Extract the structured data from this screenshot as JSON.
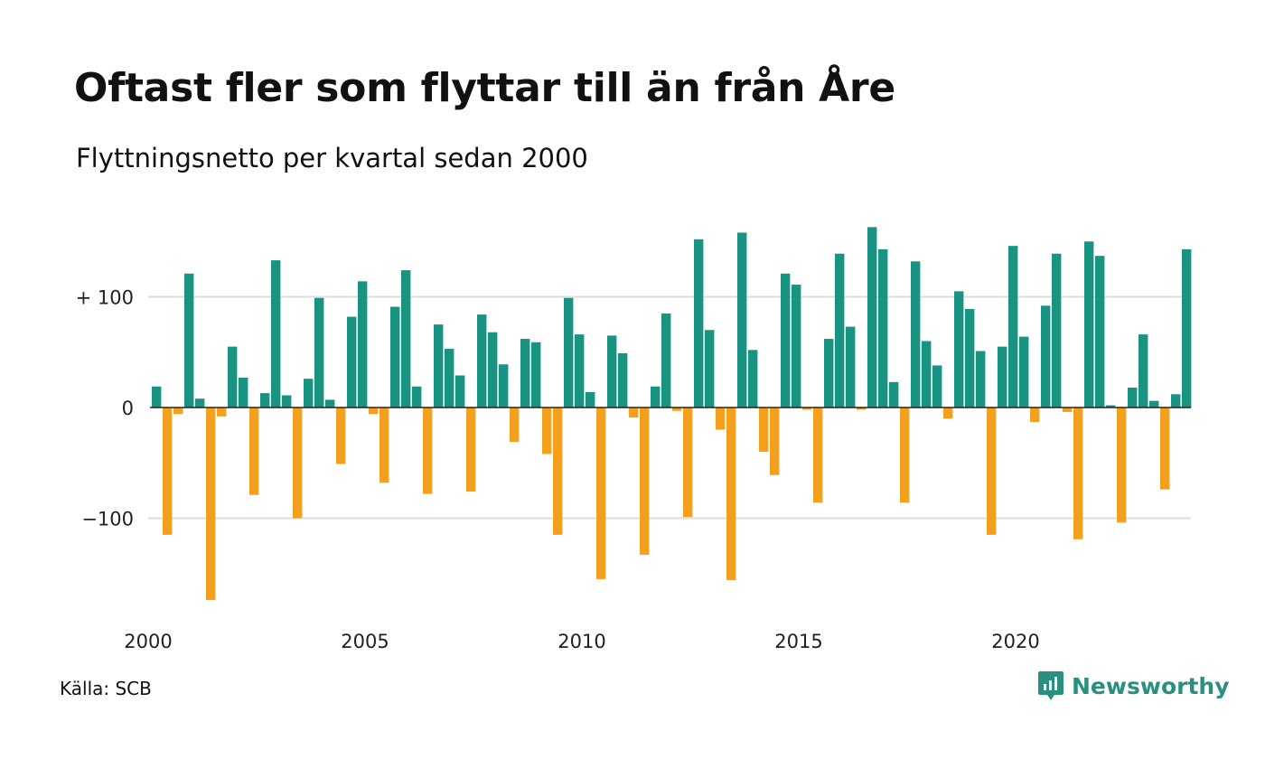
{
  "title": "Oftast fler som flyttar till än från Åre",
  "subtitle": "Flyttningsnetto per kvartal sedan 2000",
  "source": "Källa: SCB",
  "brand": {
    "name": "Newsworthy",
    "icon": "chart-speech-bubble-icon",
    "color": "#2b8f80"
  },
  "colors": {
    "positive": "#1a9482",
    "negative": "#f4a01c",
    "grid": "#dddddd",
    "axis": "#222222"
  },
  "chart_data": {
    "type": "bar",
    "first_year": 2000,
    "periods_per_year": 4,
    "ylim": [
      -180,
      165
    ],
    "yticks": [
      {
        "value": 100,
        "label": "+ 100"
      },
      {
        "value": 0,
        "label": "0"
      },
      {
        "value": -100,
        "label": "−100"
      }
    ],
    "xticks": [
      "2000",
      "2005",
      "2010",
      "2015",
      "2020"
    ],
    "grid": true,
    "values": [
      19,
      -115,
      -6,
      121,
      8,
      -174,
      -8,
      55,
      27,
      -79,
      13,
      133,
      11,
      -100,
      26,
      99,
      7,
      -51,
      82,
      114,
      -6,
      -68,
      91,
      124,
      19,
      -78,
      75,
      53,
      29,
      -76,
      84,
      68,
      39,
      -31,
      62,
      59,
      -42,
      -115,
      99,
      66,
      14,
      -155,
      65,
      49,
      -9,
      -133,
      19,
      85,
      -3,
      -99,
      152,
      70,
      -20,
      -156,
      158,
      52,
      -40,
      -61,
      121,
      111,
      -2,
      -86,
      62,
      139,
      73,
      -2,
      163,
      143,
      23,
      -86,
      132,
      60,
      38,
      -10,
      105,
      89,
      51,
      -115,
      55,
      146,
      64,
      -13,
      92,
      139,
      -4,
      -119,
      150,
      137,
      2,
      -104,
      18,
      66,
      6,
      -74,
      12,
      143
    ]
  }
}
